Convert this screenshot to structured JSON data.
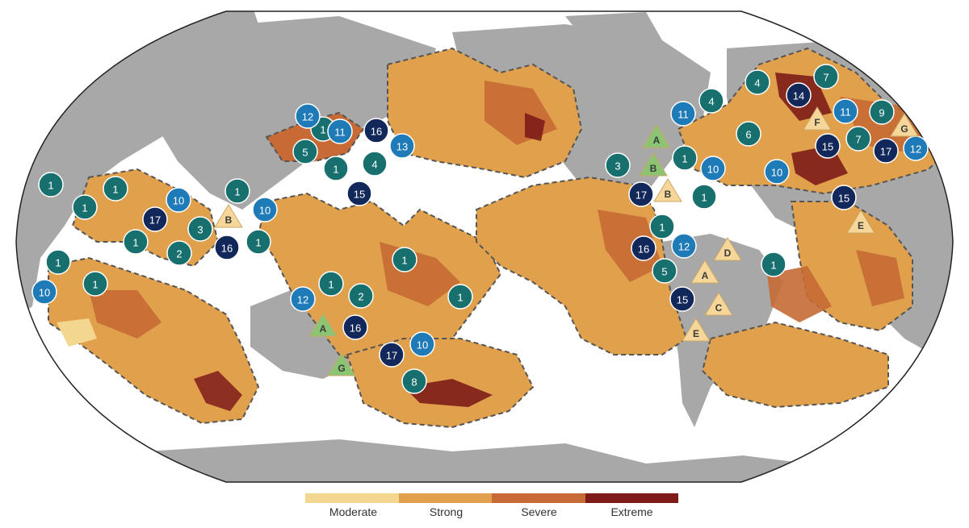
{
  "colors": {
    "ocean": "#ffffff",
    "land": "#a8a8a8",
    "moderate": "#f3d78f",
    "strong": "#e0a04c",
    "severe": "#c76a35",
    "extreme": "#7e1c1a",
    "marker_teal": "#17706e",
    "marker_blue": "#1f7ab8",
    "marker_navy": "#13285a",
    "triangle_green": "#8bc573",
    "triangle_tan": "#f6d699"
  },
  "legend": {
    "items": [
      {
        "label": "Moderate",
        "color": "#f3d78f"
      },
      {
        "label": "Strong",
        "color": "#e0a04c"
      },
      {
        "label": "Severe",
        "color": "#c76a35"
      },
      {
        "label": "Extreme",
        "color": "#7e1c1a"
      }
    ]
  },
  "circle_markers": [
    {
      "label": "1",
      "style": "teal"
    },
    {
      "label": "1",
      "style": "teal"
    },
    {
      "label": "1",
      "style": "teal"
    },
    {
      "label": "10",
      "style": "blue"
    },
    {
      "label": "1",
      "style": "teal"
    },
    {
      "label": "17",
      "style": "navy"
    },
    {
      "label": "3",
      "style": "teal"
    },
    {
      "label": "1",
      "style": "teal"
    },
    {
      "label": "1",
      "style": "teal"
    },
    {
      "label": "2",
      "style": "teal"
    },
    {
      "label": "1",
      "style": "teal"
    },
    {
      "label": "10",
      "style": "blue"
    },
    {
      "label": "1",
      "style": "teal"
    },
    {
      "label": "16",
      "style": "navy"
    },
    {
      "label": "1",
      "style": "teal"
    },
    {
      "label": "10",
      "style": "blue"
    },
    {
      "label": "12",
      "style": "blue"
    },
    {
      "label": "11",
      "style": "blue"
    },
    {
      "label": "16",
      "style": "navy"
    },
    {
      "label": "5",
      "style": "teal"
    },
    {
      "label": "1",
      "style": "teal"
    },
    {
      "label": "4",
      "style": "teal"
    },
    {
      "label": "13",
      "style": "blue"
    },
    {
      "label": "15",
      "style": "navy"
    },
    {
      "label": "1",
      "style": "teal"
    },
    {
      "label": "1",
      "style": "teal"
    },
    {
      "label": "2",
      "style": "teal"
    },
    {
      "label": "12",
      "style": "blue"
    },
    {
      "label": "16",
      "style": "navy"
    },
    {
      "label": "1",
      "style": "teal"
    },
    {
      "label": "17",
      "style": "navy"
    },
    {
      "label": "10",
      "style": "blue"
    },
    {
      "label": "8",
      "style": "teal"
    },
    {
      "label": "3",
      "style": "teal"
    },
    {
      "label": "11",
      "style": "blue"
    },
    {
      "label": "1",
      "style": "teal"
    },
    {
      "label": "10",
      "style": "blue"
    },
    {
      "label": "17",
      "style": "navy"
    },
    {
      "label": "1",
      "style": "teal"
    },
    {
      "label": "1",
      "style": "teal"
    },
    {
      "label": "16",
      "style": "navy"
    },
    {
      "label": "12",
      "style": "blue"
    },
    {
      "label": "5",
      "style": "teal"
    },
    {
      "label": "15",
      "style": "navy"
    },
    {
      "label": "4",
      "style": "teal"
    },
    {
      "label": "4",
      "style": "teal"
    },
    {
      "label": "14",
      "style": "navy"
    },
    {
      "label": "7",
      "style": "teal"
    },
    {
      "label": "6",
      "style": "teal"
    },
    {
      "label": "11",
      "style": "blue"
    },
    {
      "label": "9",
      "style": "teal"
    },
    {
      "label": "7",
      "style": "teal"
    },
    {
      "label": "15",
      "style": "navy"
    },
    {
      "label": "17",
      "style": "navy"
    },
    {
      "label": "12",
      "style": "blue"
    },
    {
      "label": "10",
      "style": "blue"
    },
    {
      "label": "15",
      "style": "navy"
    },
    {
      "label": "1",
      "style": "teal"
    }
  ],
  "triangle_markers": [
    {
      "label": "B",
      "style": "tan"
    },
    {
      "label": "A",
      "style": "green"
    },
    {
      "label": "G",
      "style": "green"
    },
    {
      "label": "A",
      "style": "green"
    },
    {
      "label": "B",
      "style": "green"
    },
    {
      "label": "B",
      "style": "tan"
    },
    {
      "label": "F",
      "style": "tan"
    },
    {
      "label": "G",
      "style": "tan"
    },
    {
      "label": "E",
      "style": "tan"
    },
    {
      "label": "D",
      "style": "tan"
    },
    {
      "label": "A",
      "style": "tan"
    },
    {
      "label": "C",
      "style": "tan"
    },
    {
      "label": "E",
      "style": "tan"
    }
  ]
}
